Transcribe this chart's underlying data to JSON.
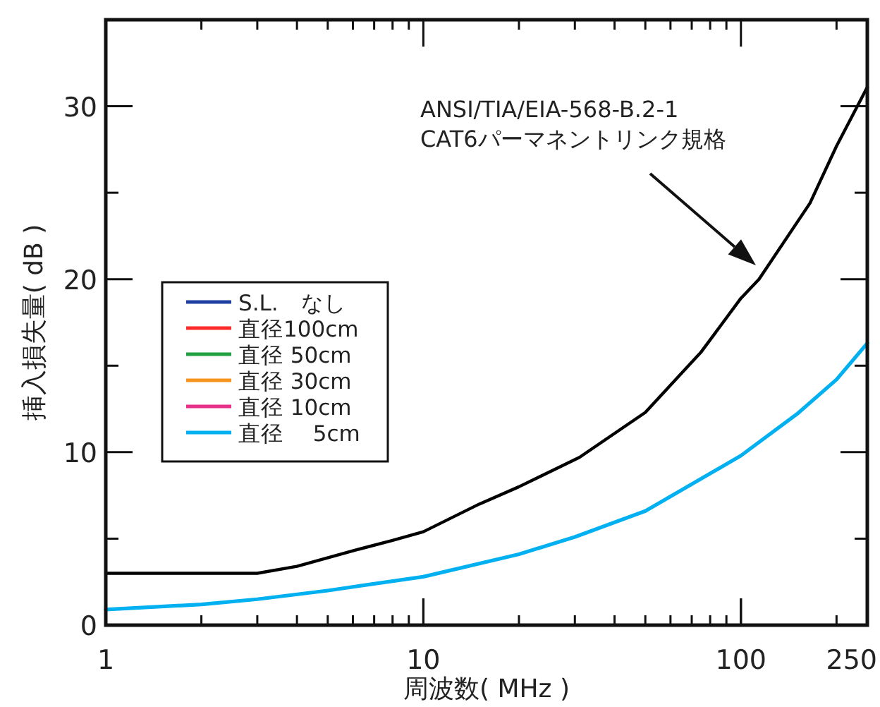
{
  "chart_data": {
    "type": "line",
    "xlabel": "周波数( MHz )",
    "ylabel": "挿入損失量( dB )",
    "log": "x",
    "xlim": [
      1,
      250
    ],
    "xticks": [
      1,
      10,
      100,
      250
    ],
    "ylim": [
      0,
      35
    ],
    "yticks": [
      0,
      10,
      20,
      30
    ],
    "grid": false,
    "legend": "left",
    "marker": "none",
    "line_style": "solid",
    "annotations": [
      "ANSI/TIA/EIA-568-B.2-1\nCAT6パーマネントリンク規格"
    ],
    "series": [
      {
        "color": "#000000",
        "x": [
          1,
          3,
          4,
          6,
          8,
          10,
          15,
          20,
          31,
          50,
          75,
          100,
          114,
          165,
          200,
          250
        ],
        "values": [
          3.0,
          3.0,
          3.4,
          4.3,
          4.9,
          5.4,
          7.0,
          8.0,
          9.7,
          12.3,
          15.8,
          18.9,
          20.0,
          24.4,
          27.7,
          31.1
        ]
      },
      {
        "name": "S.L.　なし",
        "color": "#1f3fa0"
      },
      {
        "name": "直径100cm",
        "color": "#ff2a2a"
      },
      {
        "name": "直径 50cm",
        "color": "#20a040"
      },
      {
        "name": "直径 30cm",
        "color": "#f7941d"
      },
      {
        "name": "直径 10cm",
        "color": "#e8308a"
      },
      {
        "name": "直径　 5cm",
        "color": "#00b0f0",
        "x": [
          1,
          2,
          3,
          5,
          10,
          20,
          30,
          50,
          100,
          150,
          200,
          250
        ],
        "values": [
          0.9,
          1.2,
          1.5,
          2.0,
          2.8,
          4.1,
          5.1,
          6.6,
          9.8,
          12.2,
          14.2,
          16.3
        ]
      }
    ]
  }
}
